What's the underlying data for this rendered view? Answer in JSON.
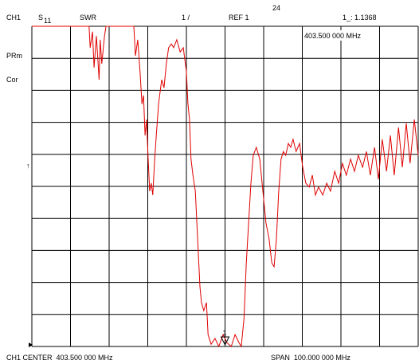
{
  "chart_data": {
    "type": "line",
    "channel": "CH1",
    "parameter": "S",
    "parameter_sub": "11",
    "format": "SWR",
    "scale": "1 /",
    "reference": "REF 1",
    "top_label": "24",
    "marker_readout": "1_: 1.1368",
    "marker_frequency": "403.500 000 MHz",
    "status": [
      "PRm",
      "Cor"
    ],
    "reference_arrow": "↑",
    "center_label": "CH1 CENTER  403.500 000 MHz",
    "span_label": "SPAN  100.000 000 MHz",
    "marker": {
      "label": "1",
      "x": 403.5,
      "y": 0.05
    },
    "color": "#e00000",
    "grid": true,
    "xlim": [
      353.5,
      453.5
    ],
    "ylim": [
      0,
      10
    ],
    "xticks": [
      353.5,
      363.5,
      373.5,
      383.5,
      393.5,
      403.5,
      413.5,
      423.5,
      433.5,
      443.5,
      453.5
    ],
    "yticks": [
      0,
      1,
      2,
      3,
      4,
      5,
      6,
      7,
      8,
      9,
      10
    ],
    "x": [
      353.5,
      368.3,
      368.6,
      369.2,
      369.6,
      370.2,
      370.9,
      371.2,
      371.6,
      372.3,
      372.7,
      379.9,
      380.3,
      380.9,
      381.5,
      382.0,
      382.4,
      382.8,
      383.2,
      383.6,
      384.0,
      384.4,
      384.8,
      385.3,
      385.7,
      386.3,
      387.1,
      387.7,
      388.3,
      388.9,
      389.6,
      390.2,
      391.0,
      391.9,
      392.7,
      393.5,
      393.9,
      394.3,
      394.7,
      395.2,
      395.8,
      396.4,
      397.0,
      397.4,
      398.0,
      398.7,
      399.1,
      399.9,
      400.9,
      401.9,
      403.0,
      404.0,
      405.1,
      406.1,
      407.1,
      407.7,
      408.4,
      409.0,
      409.6,
      410.2,
      410.8,
      411.6,
      412.5,
      413.3,
      414.1,
      414.9,
      415.6,
      416.2,
      416.8,
      417.4,
      418.0,
      418.6,
      419.2,
      419.9,
      420.5,
      421.1,
      421.9,
      422.8,
      423.6,
      424.4,
      425.3,
      426.1,
      426.9,
      427.7,
      428.8,
      429.8,
      430.8,
      431.9,
      432.9,
      433.9,
      434.9,
      436.0,
      437.0,
      438.0,
      439.1,
      440.1,
      441.1,
      442.2,
      443.2,
      444.2,
      445.3,
      446.3,
      447.3,
      448.4,
      449.4,
      450.4,
      451.4,
      452.5,
      453.5
    ],
    "values": [
      10.0,
      10.0,
      9.33,
      9.83,
      8.71,
      9.7,
      8.33,
      9.58,
      8.83,
      9.7,
      10.0,
      10.0,
      9.08,
      9.58,
      8.58,
      7.57,
      7.84,
      6.59,
      7.09,
      5.85,
      4.85,
      5.1,
      4.73,
      5.85,
      6.59,
      7.59,
      8.33,
      8.08,
      8.83,
      9.33,
      9.45,
      9.33,
      9.58,
      9.2,
      9.33,
      8.58,
      7.59,
      7.09,
      5.85,
      5.35,
      4.85,
      3.36,
      1.87,
      1.37,
      1.12,
      1.37,
      0.37,
      0.07,
      0.25,
      0,
      0.37,
      0.12,
      0,
      0.37,
      0.12,
      0,
      0.87,
      2.61,
      3.86,
      5.1,
      5.97,
      6.22,
      5.85,
      4.85,
      3.86,
      3.36,
      2.61,
      2.49,
      3.36,
      4.85,
      5.85,
      6.09,
      5.97,
      6.34,
      6.22,
      6.47,
      6.09,
      6.34,
      5.6,
      5.1,
      4.98,
      5.35,
      4.73,
      4.98,
      4.73,
      5.1,
      4.85,
      5.47,
      5.1,
      5.72,
      5.35,
      5.85,
      5.47,
      5.97,
      5.6,
      6.09,
      5.35,
      6.22,
      5.22,
      6.47,
      5.47,
      6.59,
      5.35,
      6.84,
      5.6,
      6.97,
      5.72,
      7.09,
      5.97
    ]
  }
}
